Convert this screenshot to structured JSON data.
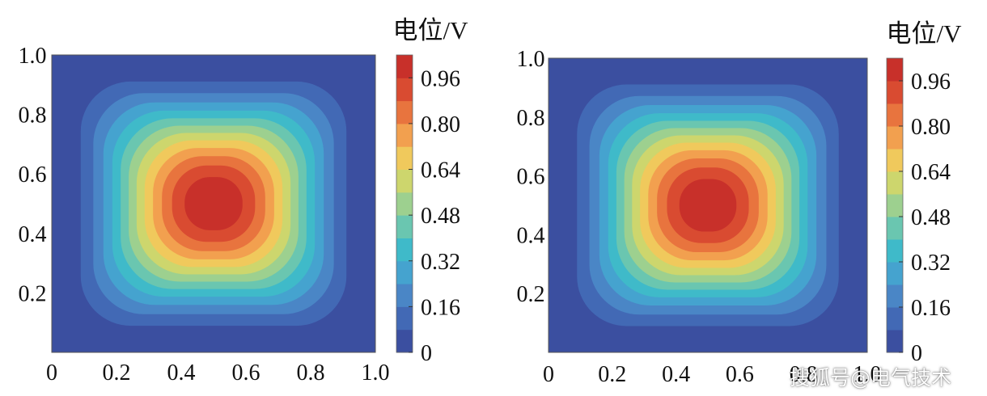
{
  "chart_data": [
    {
      "type": "heatmap",
      "colorbar_title": "电位/V",
      "x_ticks": [
        "0",
        "0.2",
        "0.4",
        "0.6",
        "0.8",
        "1.0"
      ],
      "y_ticks": [
        "0.2",
        "0.4",
        "0.6",
        "0.8",
        "1.0"
      ],
      "xlim": [
        0,
        1
      ],
      "ylim": [
        0,
        1
      ],
      "colorbar_ticks": [
        "0",
        "0.16",
        "0.32",
        "0.48",
        "0.64",
        "0.80",
        "0.96"
      ],
      "colorbar_range": [
        0,
        1.04
      ],
      "contour_levels": 13,
      "peak": {
        "x": 0.5,
        "y": 0.5,
        "value": 1.0
      },
      "boundary_value": 0
    },
    {
      "type": "heatmap",
      "colorbar_title": "电位/V",
      "x_ticks": [
        "0",
        "0.2",
        "0.4",
        "0.6",
        "0.8",
        "1.0"
      ],
      "y_ticks": [
        "0.2",
        "0.4",
        "0.6",
        "0.8",
        "1.0"
      ],
      "xlim": [
        0,
        1
      ],
      "ylim": [
        0,
        1
      ],
      "colorbar_ticks": [
        "0",
        "0.16",
        "0.32",
        "0.48",
        "0.64",
        "0.80",
        "0.96"
      ],
      "colorbar_range": [
        0,
        1.04
      ],
      "contour_levels": 13,
      "peak": {
        "x": 0.5,
        "y": 0.5,
        "value": 1.0
      },
      "boundary_value": 0
    }
  ],
  "colormap": [
    "#3b4fa0",
    "#4269b5",
    "#4a86c6",
    "#45a3cf",
    "#3fbac9",
    "#6ac6b0",
    "#9dd08f",
    "#cdd66d",
    "#f0c95c",
    "#f2a04f",
    "#e8743e",
    "#d94b31",
    "#c8302a"
  ],
  "watermark": "搜狐号@电气技术"
}
